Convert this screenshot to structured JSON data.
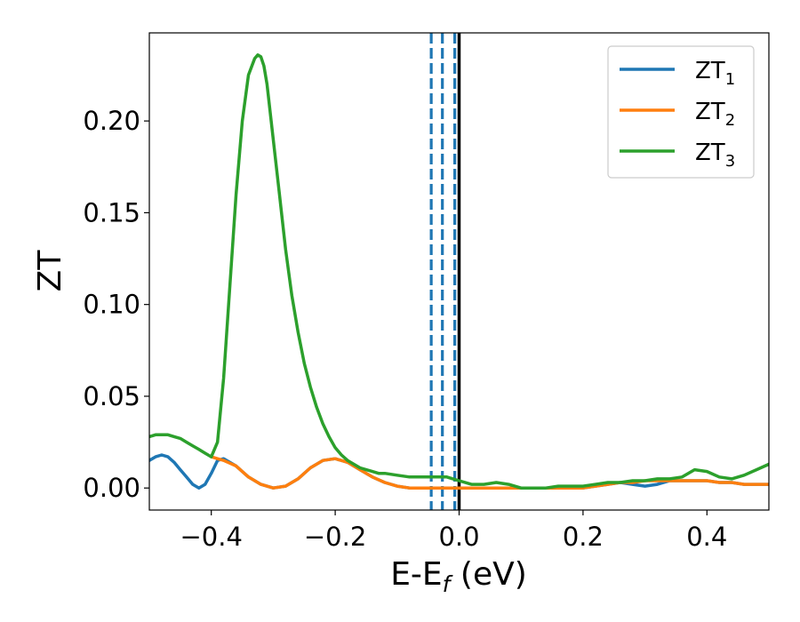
{
  "chart_data": {
    "type": "line",
    "xlabel": "E-E",
    "xlabel_sub": "f",
    "xlabel_unit": " (eV)",
    "ylabel": "ZT",
    "xlim": [
      -0.5,
      0.5
    ],
    "ylim": [
      -0.012,
      0.248
    ],
    "xticks": [
      -0.4,
      -0.2,
      0.0,
      0.2,
      0.4
    ],
    "xtick_labels": [
      "−0.4",
      "−0.2",
      "0.0",
      "0.2",
      "0.4"
    ],
    "yticks": [
      0.0,
      0.05,
      0.1,
      0.15,
      0.2
    ],
    "ytick_labels": [
      "0.00",
      "0.05",
      "0.10",
      "0.15",
      "0.20"
    ],
    "grid": false,
    "legend_position": "top-right",
    "series": [
      {
        "name": "ZT",
        "name_sub": "1",
        "color": "#1f77b4",
        "x": [
          -0.5,
          -0.49,
          -0.48,
          -0.47,
          -0.46,
          -0.45,
          -0.44,
          -0.43,
          -0.42,
          -0.41,
          -0.4,
          -0.39,
          -0.38,
          -0.36,
          -0.34,
          -0.32,
          -0.3,
          -0.28,
          -0.26,
          -0.24,
          -0.22,
          -0.2,
          -0.18,
          -0.16,
          -0.14,
          -0.12,
          -0.1,
          -0.08,
          -0.06,
          -0.04,
          -0.02,
          0.0,
          0.02,
          0.04,
          0.06,
          0.08,
          0.1,
          0.12,
          0.14,
          0.16,
          0.18,
          0.2,
          0.22,
          0.24,
          0.26,
          0.28,
          0.3,
          0.32,
          0.34,
          0.36,
          0.38,
          0.4,
          0.42,
          0.44,
          0.46,
          0.48,
          0.5
        ],
        "y": [
          0.015,
          0.017,
          0.018,
          0.017,
          0.014,
          0.01,
          0.006,
          0.002,
          0.0,
          0.002,
          0.008,
          0.015,
          0.016,
          0.012,
          0.006,
          0.002,
          0.0,
          0.001,
          0.005,
          0.011,
          0.015,
          0.016,
          0.014,
          0.01,
          0.006,
          0.003,
          0.001,
          0.0,
          0.0,
          0.0,
          0.0,
          0.0,
          0.0,
          0.0,
          0.0,
          0.0,
          0.0,
          0.0,
          0.0,
          0.0,
          0.0,
          0.0,
          0.001,
          0.002,
          0.003,
          0.002,
          0.001,
          0.002,
          0.004,
          0.004,
          0.004,
          0.004,
          0.003,
          0.003,
          0.002,
          0.002,
          0.002
        ]
      },
      {
        "name": "ZT",
        "name_sub": "2",
        "color": "#ff7f0e",
        "x": [
          -0.4,
          -0.39,
          -0.38,
          -0.36,
          -0.34,
          -0.32,
          -0.3,
          -0.28,
          -0.26,
          -0.24,
          -0.22,
          -0.2,
          -0.18,
          -0.16,
          -0.14,
          -0.12,
          -0.1,
          -0.08,
          -0.06,
          -0.04,
          -0.02,
          0.0,
          0.02,
          0.04,
          0.06,
          0.08,
          0.1,
          0.12,
          0.14,
          0.16,
          0.18,
          0.2,
          0.22,
          0.24,
          0.26,
          0.28,
          0.3,
          0.32,
          0.34,
          0.36,
          0.38,
          0.4,
          0.42,
          0.44,
          0.46,
          0.48,
          0.5
        ],
        "y": [
          0.017,
          0.016,
          0.015,
          0.012,
          0.006,
          0.002,
          0.0,
          0.001,
          0.005,
          0.011,
          0.015,
          0.016,
          0.014,
          0.01,
          0.006,
          0.003,
          0.001,
          0.0,
          0.0,
          0.0,
          0.0,
          0.0,
          0.0,
          0.0,
          0.0,
          0.0,
          0.0,
          0.0,
          0.0,
          0.0,
          0.0,
          0.0,
          0.001,
          0.002,
          0.003,
          0.003,
          0.004,
          0.004,
          0.004,
          0.004,
          0.004,
          0.004,
          0.003,
          0.003,
          0.002,
          0.002,
          0.002
        ]
      },
      {
        "name": "ZT",
        "name_sub": "3",
        "color": "#2ca02c",
        "x": [
          -0.5,
          -0.49,
          -0.48,
          -0.47,
          -0.46,
          -0.45,
          -0.44,
          -0.43,
          -0.42,
          -0.41,
          -0.4,
          -0.39,
          -0.38,
          -0.37,
          -0.36,
          -0.35,
          -0.34,
          -0.33,
          -0.325,
          -0.32,
          -0.315,
          -0.31,
          -0.3,
          -0.29,
          -0.28,
          -0.27,
          -0.26,
          -0.25,
          -0.24,
          -0.23,
          -0.22,
          -0.21,
          -0.2,
          -0.19,
          -0.18,
          -0.17,
          -0.16,
          -0.15,
          -0.14,
          -0.13,
          -0.12,
          -0.1,
          -0.08,
          -0.06,
          -0.04,
          -0.02,
          -0.01,
          0.0,
          0.02,
          0.04,
          0.06,
          0.08,
          0.1,
          0.12,
          0.14,
          0.16,
          0.18,
          0.2,
          0.22,
          0.24,
          0.26,
          0.28,
          0.3,
          0.32,
          0.34,
          0.36,
          0.38,
          0.4,
          0.42,
          0.44,
          0.46,
          0.48,
          0.5
        ],
        "y": [
          0.028,
          0.029,
          0.029,
          0.029,
          0.028,
          0.027,
          0.025,
          0.023,
          0.021,
          0.019,
          0.017,
          0.025,
          0.06,
          0.11,
          0.16,
          0.2,
          0.225,
          0.234,
          0.236,
          0.235,
          0.23,
          0.22,
          0.19,
          0.16,
          0.13,
          0.105,
          0.085,
          0.068,
          0.055,
          0.044,
          0.035,
          0.028,
          0.022,
          0.018,
          0.015,
          0.013,
          0.011,
          0.01,
          0.009,
          0.008,
          0.008,
          0.007,
          0.006,
          0.006,
          0.006,
          0.006,
          0.005,
          0.004,
          0.002,
          0.002,
          0.003,
          0.002,
          0.0,
          0.0,
          0.0,
          0.001,
          0.001,
          0.001,
          0.002,
          0.003,
          0.003,
          0.004,
          0.004,
          0.005,
          0.005,
          0.006,
          0.01,
          0.009,
          0.006,
          0.005,
          0.007,
          0.01,
          0.013
        ]
      }
    ],
    "vlines": [
      {
        "x": -0.045,
        "color": "#1f77b4",
        "style": "dashed"
      },
      {
        "x": -0.027,
        "color": "#1f77b4",
        "style": "dashed"
      },
      {
        "x": -0.007,
        "color": "#1f77b4",
        "style": "dashed"
      },
      {
        "x": 0.0,
        "color": "#000000",
        "style": "solid"
      }
    ]
  }
}
